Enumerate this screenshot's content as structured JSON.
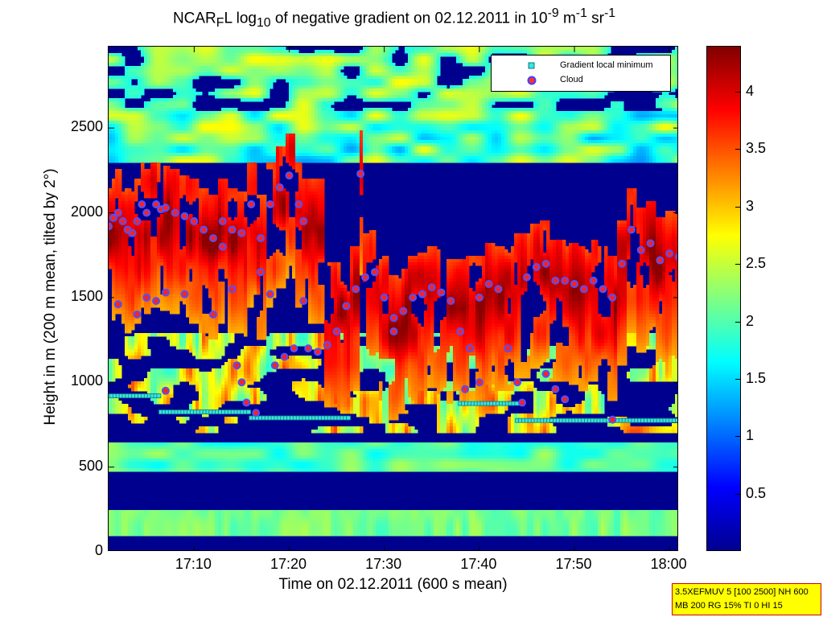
{
  "title_html": "NCAR<sub>F</sub>L log<sub>10</sub> of negative gradient on 02.12.2011 in 10<sup>-9</sup> m<sup>-1</sup> sr<sup>-1</sup>",
  "chart_data": {
    "type": "heatmap",
    "ylabel": "Height in m (200 m mean, tilted by 2°)",
    "xlabel": "Time on 02.12.2011 (600 s mean)",
    "x_ticks": [
      "17:10",
      "17:20",
      "17:30",
      "17:40",
      "17:50",
      "18:00"
    ],
    "x_tick_minutes": [
      10,
      20,
      30,
      40,
      50,
      60
    ],
    "xlim_minutes": [
      1,
      61
    ],
    "y_ticks": [
      0,
      500,
      1000,
      1500,
      2000,
      2500
    ],
    "ylim": [
      0,
      2980
    ],
    "colorbar": {
      "ticks": [
        "0.5",
        "1",
        "1.5",
        "2",
        "2.5",
        "3",
        "3.5",
        "4"
      ],
      "tick_values": [
        0.5,
        1,
        1.5,
        2,
        2.5,
        3,
        3.5,
        4
      ],
      "range": [
        0,
        4.4
      ],
      "colormap": "jet"
    },
    "legend": [
      {
        "label": "Gradient local minimum",
        "marker": "square",
        "color": "#40e0e0"
      },
      {
        "label": "Cloud",
        "marker": "circle",
        "color": "#ff3030",
        "edge": "#4040ff"
      }
    ],
    "gradient_local_minimum": [
      {
        "t": [
          1,
          6.5
        ],
        "h": 920
      },
      {
        "t": [
          6.5,
          16
        ],
        "h": 825
      },
      {
        "t": [
          16,
          26.5
        ],
        "h": 790
      },
      {
        "t": [
          38,
          44
        ],
        "h": 875
      },
      {
        "t": [
          44,
          61
        ],
        "h": 775
      }
    ],
    "cloud": [
      {
        "t": 1,
        "h": 1920
      },
      {
        "t": 1.5,
        "h": 1970
      },
      {
        "t": 2,
        "h": 2000
      },
      {
        "t": 2.5,
        "h": 1950
      },
      {
        "t": 3,
        "h": 1900
      },
      {
        "t": 3.5,
        "h": 1880
      },
      {
        "t": 4,
        "h": 1950
      },
      {
        "t": 4.5,
        "h": 2050
      },
      {
        "t": 5,
        "h": 2000
      },
      {
        "t": 6,
        "h": 2050
      },
      {
        "t": 6.5,
        "h": 2020
      },
      {
        "t": 7,
        "h": 2030
      },
      {
        "t": 8,
        "h": 2000
      },
      {
        "t": 9,
        "h": 1980
      },
      {
        "t": 10,
        "h": 1950
      },
      {
        "t": 11,
        "h": 1900
      },
      {
        "t": 12,
        "h": 1850
      },
      {
        "t": 13,
        "h": 1950
      },
      {
        "t": 14,
        "h": 1900
      },
      {
        "t": 15,
        "h": 1880
      },
      {
        "t": 16,
        "h": 2050
      },
      {
        "t": 17,
        "h": 1850
      },
      {
        "t": 18,
        "h": 2050
      },
      {
        "t": 19,
        "h": 2150
      },
      {
        "t": 20,
        "h": 2220
      },
      {
        "t": 21,
        "h": 2050
      },
      {
        "t": 21.5,
        "h": 1950
      },
      {
        "t": 2,
        "h": 1460
      },
      {
        "t": 4,
        "h": 1400
      },
      {
        "t": 5,
        "h": 1500
      },
      {
        "t": 6,
        "h": 1480
      },
      {
        "t": 7,
        "h": 1530
      },
      {
        "t": 9,
        "h": 1520
      },
      {
        "t": 7,
        "h": 950
      },
      {
        "t": 12,
        "h": 1400
      },
      {
        "t": 13,
        "h": 1800
      },
      {
        "t": 14,
        "h": 1550
      },
      {
        "t": 14.5,
        "h": 1100
      },
      {
        "t": 15,
        "h": 1000
      },
      {
        "t": 15.5,
        "h": 880
      },
      {
        "t": 16.5,
        "h": 820
      },
      {
        "t": 17,
        "h": 1650
      },
      {
        "t": 18,
        "h": 1520
      },
      {
        "t": 18.5,
        "h": 1100
      },
      {
        "t": 19.5,
        "h": 1150
      },
      {
        "t": 20.5,
        "h": 1200
      },
      {
        "t": 21.5,
        "h": 1480
      },
      {
        "t": 22,
        "h": 1200
      },
      {
        "t": 23,
        "h": 1180
      },
      {
        "t": 24,
        "h": 1220
      },
      {
        "t": 25,
        "h": 1300
      },
      {
        "t": 26,
        "h": 1450
      },
      {
        "t": 27,
        "h": 1550
      },
      {
        "t": 28,
        "h": 1620
      },
      {
        "t": 29,
        "h": 1650
      },
      {
        "t": 30,
        "h": 1500
      },
      {
        "t": 31,
        "h": 1380
      },
      {
        "t": 32,
        "h": 1420
      },
      {
        "t": 33,
        "h": 1500
      },
      {
        "t": 34,
        "h": 1520
      },
      {
        "t": 35,
        "h": 1560
      },
      {
        "t": 36,
        "h": 1530
      },
      {
        "t": 37,
        "h": 1480
      },
      {
        "t": 38,
        "h": 1300
      },
      {
        "t": 39,
        "h": 1200
      },
      {
        "t": 40,
        "h": 1500
      },
      {
        "t": 41,
        "h": 1580
      },
      {
        "t": 42,
        "h": 1550
      },
      {
        "t": 43,
        "h": 1200
      },
      {
        "t": 44,
        "h": 1000
      },
      {
        "t": 45,
        "h": 1620
      },
      {
        "t": 46,
        "h": 1680
      },
      {
        "t": 47,
        "h": 1700
      },
      {
        "t": 48,
        "h": 1600
      },
      {
        "t": 49,
        "h": 1600
      },
      {
        "t": 50,
        "h": 1580
      },
      {
        "t": 51,
        "h": 1550
      },
      {
        "t": 52,
        "h": 1600
      },
      {
        "t": 53,
        "h": 1550
      },
      {
        "t": 54,
        "h": 1500
      },
      {
        "t": 55,
        "h": 1700
      },
      {
        "t": 56,
        "h": 1900
      },
      {
        "t": 57,
        "h": 1780
      },
      {
        "t": 58,
        "h": 1820
      },
      {
        "t": 59,
        "h": 1720
      },
      {
        "t": 60,
        "h": 1760
      },
      {
        "t": 61,
        "h": 1740
      },
      {
        "t": 27.5,
        "h": 2230
      },
      {
        "t": 31,
        "h": 1300
      },
      {
        "t": 40,
        "h": 1000
      },
      {
        "t": 44.5,
        "h": 880
      },
      {
        "t": 47,
        "h": 1050
      },
      {
        "t": 48,
        "h": 960
      },
      {
        "t": 49,
        "h": 900
      },
      {
        "t": 54,
        "h": 780
      },
      {
        "t": 38.5,
        "h": 960
      }
    ]
  },
  "infobox": {
    "line1": "3.5XEFMUV 5 [100 2500] NH 600",
    "line2": "MB 200 RG 15% TI 0 HI 15"
  }
}
